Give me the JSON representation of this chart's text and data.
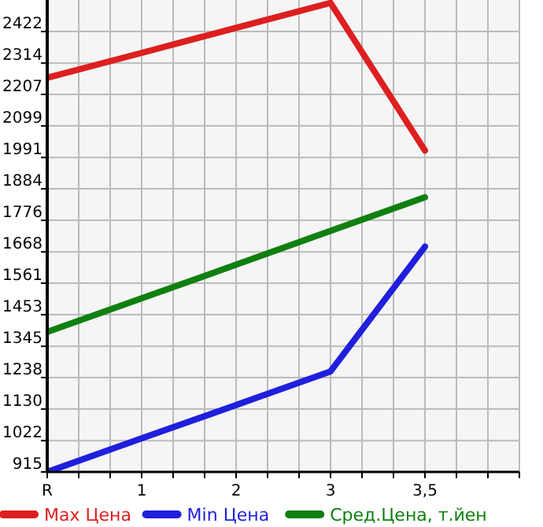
{
  "chart_data": {
    "type": "line",
    "categories": [
      "R",
      "1",
      "2",
      "3",
      "3,5",
      null
    ],
    "ylim": [
      915,
      2530
    ],
    "yticks": [
      915,
      1022,
      1130,
      1238,
      1345,
      1453,
      1561,
      1668,
      1776,
      1884,
      1991,
      2099,
      2207,
      2314,
      2422
    ],
    "grid": true,
    "legend": "bottom",
    "marker": "none",
    "line_style": "solid",
    "series": [
      {
        "name": "Max Цена",
        "color": "#dd1f1f",
        "values": [
          2264,
          2349,
          2435,
          2520,
          2015,
          null
        ]
      },
      {
        "name": "Min Цена",
        "color": "#1f1fdd",
        "values": [
          915,
          1030,
          1144,
          1259,
          1686,
          null
        ]
      },
      {
        "name": "Сред.Цена, т.йен",
        "color": "#0f800f",
        "values": [
          1394,
          1509,
          1624,
          1740,
          1855,
          null
        ]
      }
    ]
  }
}
